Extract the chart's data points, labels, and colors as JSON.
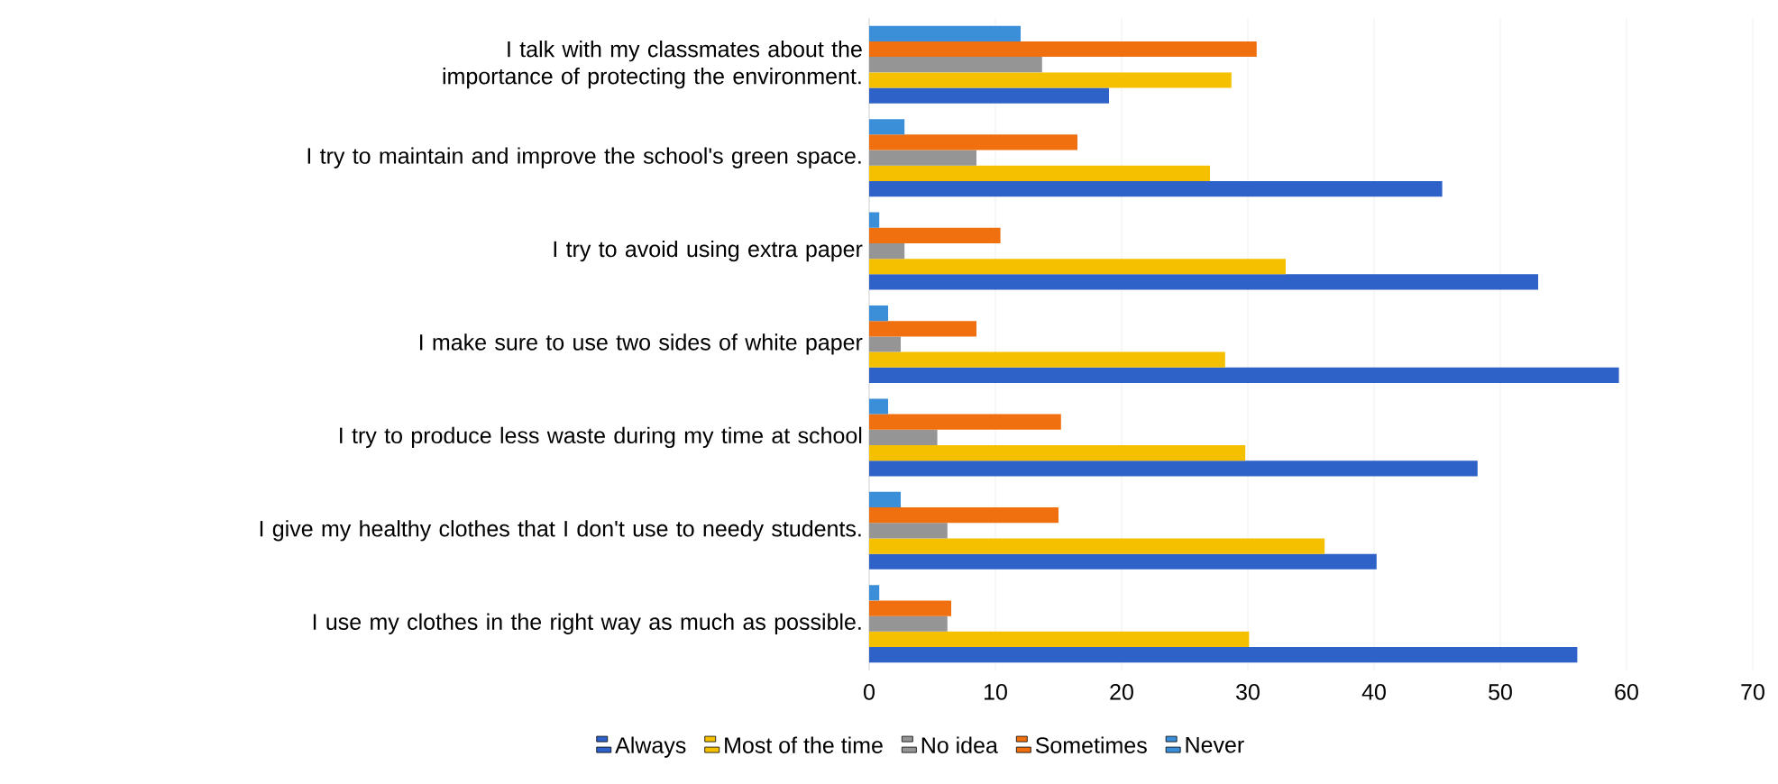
{
  "chart_data": {
    "type": "bar",
    "orientation": "horizontal",
    "categories": [
      "I talk with my classmates about the importance of protecting the environment.",
      "I try to maintain and improve the school's green space.",
      "I try to avoid using extra paper",
      "I make sure to use two sides of white paper",
      "I try to produce less waste during my time at school",
      "I give my healthy clothes that I don't use to needy students.",
      "I use my clothes in the right way as much as possible."
    ],
    "series": [
      {
        "name": "Always",
        "color": "#2e62c8",
        "values": [
          19.0,
          45.4,
          53.0,
          59.4,
          48.2,
          40.2,
          56.1
        ]
      },
      {
        "name": "Most of the time",
        "color": "#f5c000",
        "values": [
          28.7,
          27.0,
          33.0,
          28.2,
          29.8,
          36.1,
          30.1
        ]
      },
      {
        "name": "No idea",
        "color": "#959595",
        "values": [
          13.7,
          8.5,
          2.8,
          2.5,
          5.4,
          6.2,
          6.2
        ]
      },
      {
        "name": "Sometimes",
        "color": "#f07010",
        "values": [
          30.7,
          16.5,
          10.4,
          8.5,
          15.2,
          15.0,
          6.5
        ]
      },
      {
        "name": "Never",
        "color": "#3b8ed8",
        "values": [
          12.0,
          2.8,
          0.8,
          1.5,
          1.5,
          2.5,
          0.8
        ]
      }
    ],
    "xlim": [
      0,
      70
    ],
    "xticks": [
      0,
      10,
      20,
      30,
      40,
      50,
      60,
      70
    ],
    "grid": "x",
    "legend": "bottom"
  }
}
